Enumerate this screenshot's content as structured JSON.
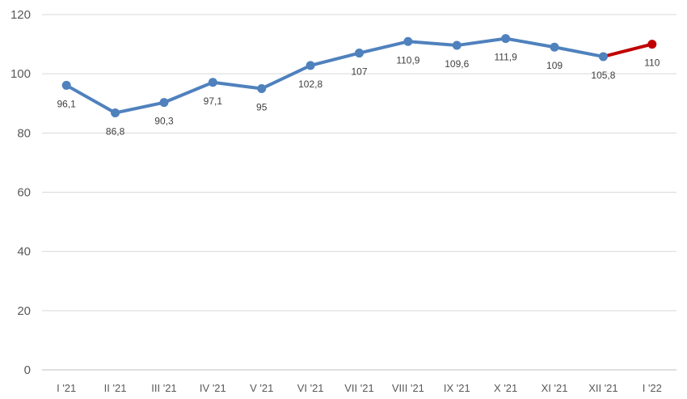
{
  "chart_data": {
    "type": "line",
    "categories": [
      "I '21",
      "II '21",
      "III '21",
      "IV '21",
      "V '21",
      "VI '21",
      "VII '21",
      "VIII '21",
      "IX '21",
      "X '21",
      "XI '21",
      "XII '21",
      "I '22"
    ],
    "values": [
      96.1,
      86.8,
      90.3,
      97.1,
      95,
      102.8,
      107,
      110.9,
      109.6,
      111.9,
      109,
      105.8,
      110
    ],
    "data_labels": [
      "96,1",
      "86,8",
      "90,3",
      "97,1",
      "95",
      "102,8",
      "107",
      "110,9",
      "109,6",
      "111,9",
      "109",
      "105,8",
      "110"
    ],
    "ylim": [
      0,
      120
    ],
    "yticks": [
      0,
      20,
      40,
      60,
      80,
      100,
      120
    ],
    "grid": true,
    "colors": {
      "main": "#4f81bd",
      "highlight": "#c00000",
      "grid": "#d9d9d9"
    },
    "highlight_from_index": 11
  }
}
